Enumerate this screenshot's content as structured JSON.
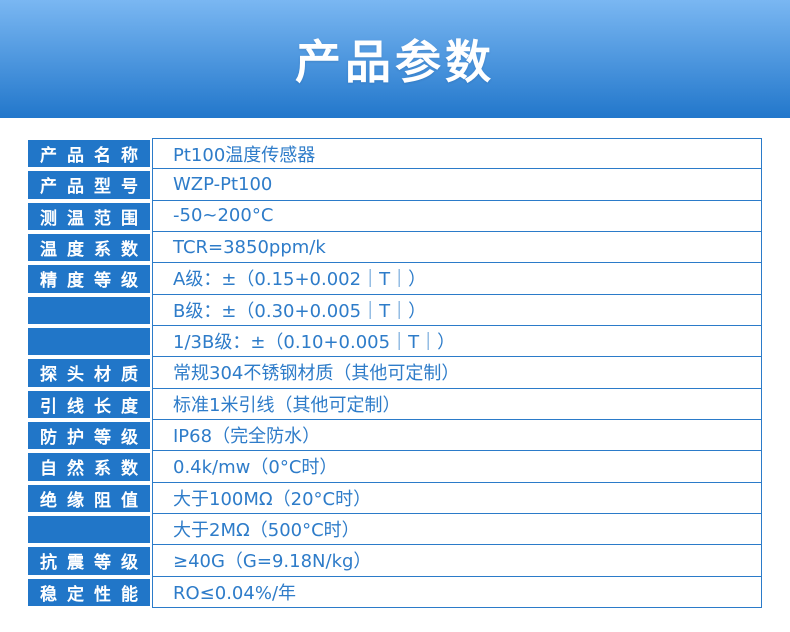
{
  "banner": {
    "title": "产品参数"
  },
  "table": {
    "rows": [
      {
        "label": "产品名称",
        "value": "Pt100温度传感器"
      },
      {
        "label": "产品型号",
        "value": "WZP-Pt100"
      },
      {
        "label": "测温范围",
        "value": "-50~200°C"
      },
      {
        "label": "温度系数",
        "value": "TCR=3850ppm/k"
      },
      {
        "label": "精度等级",
        "value": "A级：±（0.15+0.002｜T｜）"
      },
      {
        "label": "",
        "value": "B级：±（0.30+0.005｜T｜）"
      },
      {
        "label": "",
        "value": "1/3B级：±（0.10+0.005｜T｜）"
      },
      {
        "label": "探头材质",
        "value": "常规304不锈钢材质（其他可定制）"
      },
      {
        "label": "引线长度",
        "value": "标准1米引线（其他可定制）"
      },
      {
        "label": "防护等级",
        "value": "IP68（完全防水）"
      },
      {
        "label": "自然系数",
        "value": "0.4k/mw（0°C时）"
      },
      {
        "label": "绝缘阻值",
        "value": "大于100MΩ（20°C时）"
      },
      {
        "label": "",
        "value": "大于2MΩ（500°C时）"
      },
      {
        "label": "抗震等级",
        "value": "≥40G（G=9.18N/kg）"
      },
      {
        "label": "稳定性能",
        "value": "RO≤0.04%/年"
      }
    ]
  },
  "colors": {
    "accent": "#2176c8",
    "line": "#2b7bc9",
    "value_text": "#2e7cc9",
    "banner_gradient_top": "#7ab7f2",
    "banner_gradient_bottom": "#2277cb"
  }
}
